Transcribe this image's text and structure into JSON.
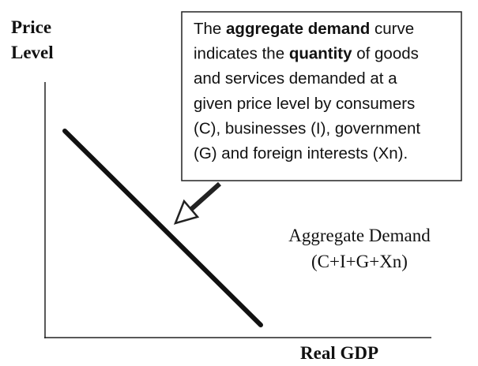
{
  "y_axis_label": [
    "Price",
    "Level"
  ],
  "x_axis_label": "Real GDP",
  "curve_label": [
    "Aggregate Demand",
    "(C+I+G+Xn)"
  ],
  "callout": {
    "lines": [
      [
        {
          "text": "The "
        },
        {
          "text": "aggregate demand",
          "bold": true
        },
        {
          "text": " curve"
        }
      ],
      [
        {
          "text": "indicates the "
        },
        {
          "text": "quantity",
          "bold": true
        },
        {
          "text": " of goods"
        }
      ],
      [
        {
          "text": "and services demanded at a"
        }
      ],
      [
        {
          "text": "given price level by consumers"
        }
      ],
      [
        {
          "text": "(C), businesses (I), government"
        }
      ],
      [
        {
          "text": "(G) and foreign interests (Xn)."
        }
      ]
    ]
  }
}
